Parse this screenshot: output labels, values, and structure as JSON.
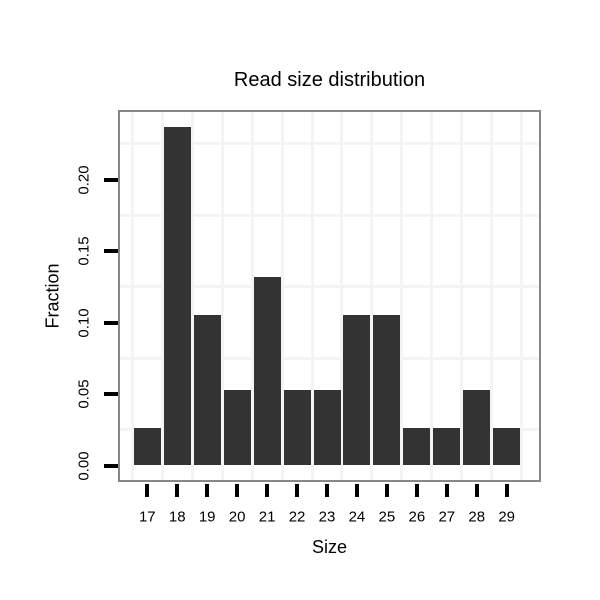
{
  "chart_data": {
    "type": "bar",
    "title": "Read size distribution",
    "xlabel": "Size",
    "ylabel": "Fraction",
    "categories": [
      17,
      18,
      19,
      20,
      21,
      22,
      23,
      24,
      25,
      26,
      27,
      28,
      29
    ],
    "values": [
      0.0263,
      0.2368,
      0.1053,
      0.0526,
      0.1316,
      0.0526,
      0.0526,
      0.1053,
      0.1053,
      0.0263,
      0.0263,
      0.0526,
      0.0263
    ],
    "x_tick_labels": [
      "17",
      "18",
      "19",
      "20",
      "21",
      "22",
      "23",
      "24",
      "25",
      "26",
      "27",
      "28",
      "29"
    ],
    "y_tick_labels": [
      "0.00",
      "0.05",
      "0.10",
      "0.15",
      "0.20"
    ],
    "y_tick_values": [
      0,
      0.05,
      0.1,
      0.15,
      0.2
    ],
    "y_minor_values": [
      0.025,
      0.075,
      0.125,
      0.175,
      0.225
    ],
    "x_minor_values": [
      16.5,
      17.5,
      18.5,
      19.5,
      20.5,
      21.5,
      22.5,
      23.5,
      24.5,
      25.5,
      26.5,
      27.5,
      28.5,
      29.5
    ],
    "ylim": [
      -0.012,
      0.249
    ],
    "grid": "minor-only",
    "legend": "none",
    "colors": {
      "bar_fill": "#333333",
      "panel_border": "#868686",
      "grid_minor": "#f4f4f4",
      "tick": "#000000",
      "text": "#000000",
      "background": "#ffffff"
    }
  }
}
